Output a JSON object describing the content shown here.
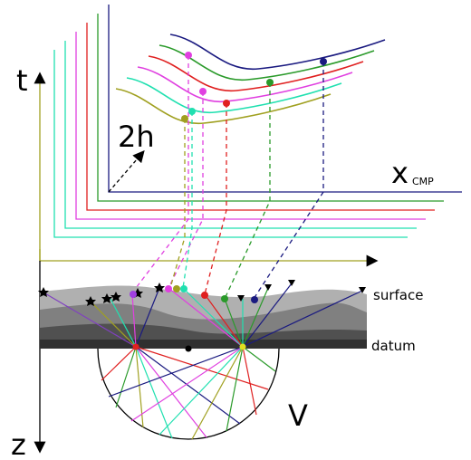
{
  "labels": {
    "t": "t",
    "two_h": "2h",
    "x": "x",
    "cmp": "CMP",
    "surface": "surface",
    "datum": "datum",
    "v": "V",
    "z": "z"
  }
}
